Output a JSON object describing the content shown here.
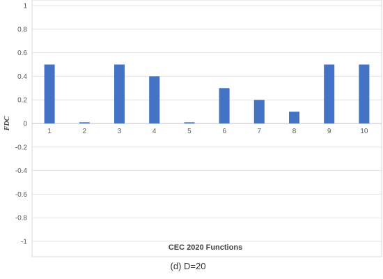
{
  "chart_data": {
    "type": "bar",
    "categories": [
      "1",
      "2",
      "3",
      "4",
      "5",
      "6",
      "7",
      "8",
      "9",
      "10"
    ],
    "values": [
      0.5,
      0.01,
      0.5,
      0.4,
      0.01,
      0.3,
      0.2,
      0.1,
      0.5,
      0.5
    ],
    "xlabel": "CEC 2020 Functions",
    "ylabel": "FDC",
    "ylim": [
      -1,
      1
    ],
    "yticks": [
      "1",
      "0.8",
      "0.6",
      "0.4",
      "0.2",
      "0",
      "-0.2",
      "-0.4",
      "-0.6",
      "-0.8",
      "-1"
    ],
    "grid": true,
    "bar_color": "#4472C4"
  },
  "caption": "(d) D=20"
}
